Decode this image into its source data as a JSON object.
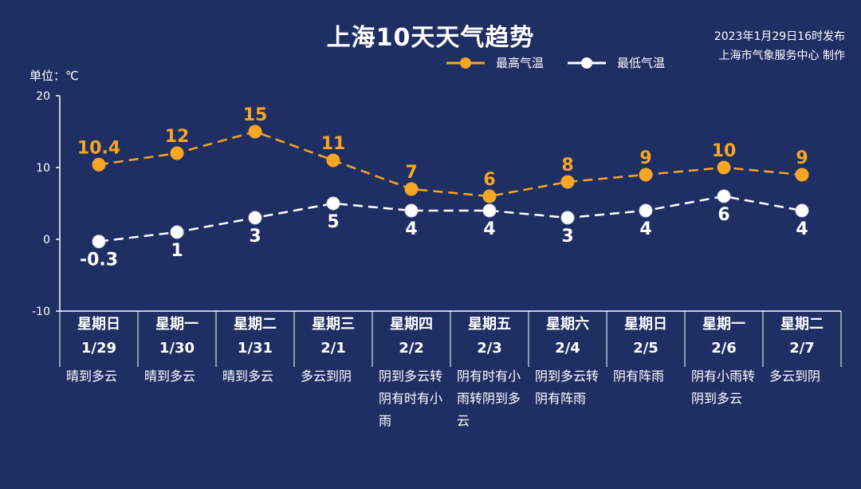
{
  "title": "上海10天天气趋势",
  "publish": {
    "line1": "2023年1月29日16时发布",
    "line2": "上海市气象服务中心 制作"
  },
  "unit_label": "单位：℃",
  "legend": {
    "high": "最高气温",
    "low": "最低气温"
  },
  "colors": {
    "background": "#1f2f63",
    "high": "#f5a623",
    "low": "#ffffff",
    "axis": "#ffffff"
  },
  "days": [
    {
      "week": "星期日",
      "date": "1/29",
      "weather": "晴到多云"
    },
    {
      "week": "星期一",
      "date": "1/30",
      "weather": "晴到多云"
    },
    {
      "week": "星期二",
      "date": "1/31",
      "weather": "晴到多云"
    },
    {
      "week": "星期三",
      "date": "2/1",
      "weather": "多云到阴"
    },
    {
      "week": "星期四",
      "date": "2/2",
      "weather": "阴到多云转阴有时有小雨"
    },
    {
      "week": "星期五",
      "date": "2/3",
      "weather": "阴有时有小雨转阴到多云"
    },
    {
      "week": "星期六",
      "date": "2/4",
      "weather": "阴到多云转阴有阵雨"
    },
    {
      "week": "星期日",
      "date": "2/5",
      "weather": "阴有阵雨"
    },
    {
      "week": "星期一",
      "date": "2/6",
      "weather": "阴有小雨转阴到多云"
    },
    {
      "week": "星期二",
      "date": "2/7",
      "weather": "多云到阴"
    }
  ],
  "chart_data": {
    "type": "line",
    "categories": [
      "1/29",
      "1/30",
      "1/31",
      "2/1",
      "2/2",
      "2/3",
      "2/4",
      "2/5",
      "2/6",
      "2/7"
    ],
    "series": [
      {
        "name": "最高气温",
        "values": [
          10.4,
          12,
          15,
          11,
          7,
          6,
          8,
          9,
          10,
          9
        ],
        "labels": [
          "10.4",
          "12",
          "15",
          "11",
          "7",
          "6",
          "8",
          "9",
          "10",
          "9"
        ]
      },
      {
        "name": "最低气温",
        "values": [
          -0.3,
          1,
          3,
          5,
          4,
          4,
          3,
          4,
          6,
          4
        ],
        "labels": [
          "-0.3",
          "1",
          "3",
          "5",
          "4",
          "4",
          "3",
          "4",
          "6",
          "4"
        ]
      }
    ],
    "y_ticks": [
      "20",
      "10",
      "0",
      "-10"
    ],
    "ylim": [
      -10,
      20
    ],
    "grid": false,
    "legend_position": "top-right",
    "line_style": "dashed"
  }
}
